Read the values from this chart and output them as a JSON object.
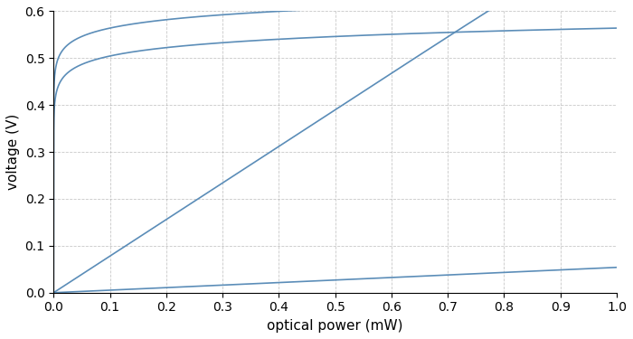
{
  "xlabel": "optical power (mW)",
  "ylabel": "voltage (V)",
  "xlim": [
    0,
    1.0
  ],
  "ylim": [
    0,
    0.6
  ],
  "xticks": [
    0,
    0.1,
    0.2,
    0.3,
    0.4,
    0.5,
    0.6,
    0.7,
    0.8,
    0.9,
    1.0
  ],
  "yticks": [
    0,
    0.1,
    0.2,
    0.3,
    0.4,
    0.5,
    0.6
  ],
  "line_color": "#5b8db8",
  "background_color": "#ffffff",
  "grid_color": "#b0b0b0",
  "curves": [
    {
      "type": "diode",
      "nVt": 0.02585,
      "I0_mA": 2e-11,
      "R_mA_per_mW": 0.6
    },
    {
      "type": "diode",
      "nVt": 0.02585,
      "I0_mA": 2e-10,
      "R_mA_per_mW": 0.6
    },
    {
      "type": "resistor",
      "R_load_kohm": 1.3,
      "R_mA_per_mW": 0.6
    },
    {
      "type": "resistor",
      "R_load_kohm": 0.09,
      "R_mA_per_mW": 0.6
    }
  ]
}
